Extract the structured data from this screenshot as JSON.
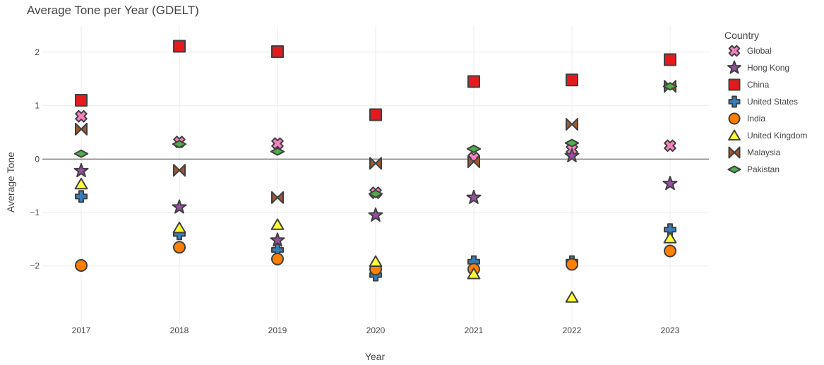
{
  "chart_data": {
    "type": "scatter",
    "title": "Average Tone per Year (GDELT)",
    "xlabel": "Year",
    "ylabel": "Average Tone",
    "legend_title": "Country",
    "legend_position": "right",
    "grid": true,
    "x": [
      "2017",
      "2018",
      "2019",
      "2020",
      "2021",
      "2022",
      "2023"
    ],
    "ylim": [
      -3.1,
      2.5
    ],
    "yticks": [
      2,
      1,
      0,
      -1,
      -2
    ],
    "ytick_labels": [
      "2",
      "1",
      "0",
      "−1",
      "−2"
    ],
    "series": [
      {
        "name": "Global",
        "marker": "x-thin-cross",
        "color": "#f781bf",
        "values": [
          0.8,
          0.32,
          0.29,
          -0.63,
          0.02,
          0.18,
          0.25
        ]
      },
      {
        "name": "Hong Kong",
        "marker": "star",
        "color": "#984ea3",
        "values": [
          -0.22,
          -0.9,
          -1.52,
          -1.05,
          -0.72,
          0.06,
          -0.46
        ]
      },
      {
        "name": "China",
        "marker": "square",
        "color": "#e41a1c",
        "values": [
          1.1,
          2.11,
          2.01,
          0.83,
          1.45,
          1.48,
          1.86
        ]
      },
      {
        "name": "United States",
        "marker": "cross",
        "color": "#377eb8",
        "values": [
          -0.7,
          -1.4,
          -1.7,
          -2.17,
          -1.92,
          -1.92,
          -1.32
        ]
      },
      {
        "name": "India",
        "marker": "circle",
        "color": "#ff7f00",
        "values": [
          -1.99,
          -1.65,
          -1.87,
          -2.06,
          -2.06,
          -1.97,
          -1.72
        ]
      },
      {
        "name": "United Kingdom",
        "marker": "triangle-up",
        "color": "#ffff33",
        "values": [
          -0.47,
          -1.29,
          -1.23,
          -1.92,
          -2.15,
          -2.59,
          -1.48
        ]
      },
      {
        "name": "Malaysia",
        "marker": "bowtie",
        "color": "#a65628",
        "values": [
          0.56,
          -0.21,
          -0.72,
          -0.08,
          -0.05,
          0.65,
          1.36
        ]
      },
      {
        "name": "Pakistan",
        "marker": "diamond-wide",
        "color": "#4daf4a",
        "values": [
          0.1,
          0.28,
          0.14,
          -0.65,
          0.19,
          0.3,
          1.36
        ]
      }
    ]
  }
}
